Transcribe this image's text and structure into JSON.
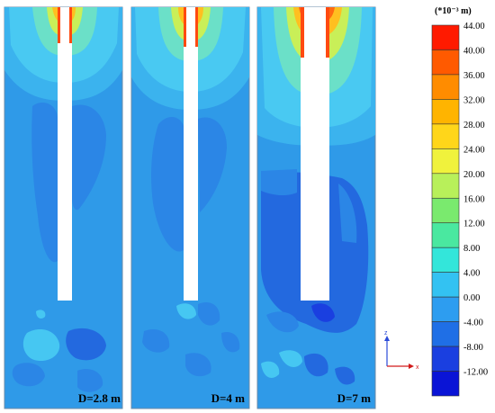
{
  "panels": [
    {
      "label": "D=2.8 m"
    },
    {
      "label": "D=4 m"
    },
    {
      "label": "D=7 m"
    }
  ],
  "legend": {
    "title": "(*10⁻³ m)",
    "ticks": [
      "44.00",
      "40.00",
      "36.00",
      "32.00",
      "28.00",
      "24.00",
      "20.00",
      "16.00",
      "12.00",
      "8.00",
      "4.00",
      "0.00",
      "-4.00",
      "-8.00",
      "-12.00"
    ],
    "colors": [
      "#ff1a00",
      "#ff5a00",
      "#ff8c00",
      "#ffb400",
      "#ffd61a",
      "#f0f23c",
      "#b8f05a",
      "#7aea6e",
      "#4ae8a0",
      "#33e6da",
      "#33c2f2",
      "#2d9df0",
      "#1f6fe6",
      "#1a3fe0",
      "#0a14d6"
    ]
  },
  "axis": {
    "z": "z",
    "x": "x"
  },
  "colors": {
    "base": "#2f9ae8",
    "mid": "#2b86e6",
    "deep": "#2369df",
    "light": "#46c7f2",
    "hot": "#ff4a10"
  }
}
